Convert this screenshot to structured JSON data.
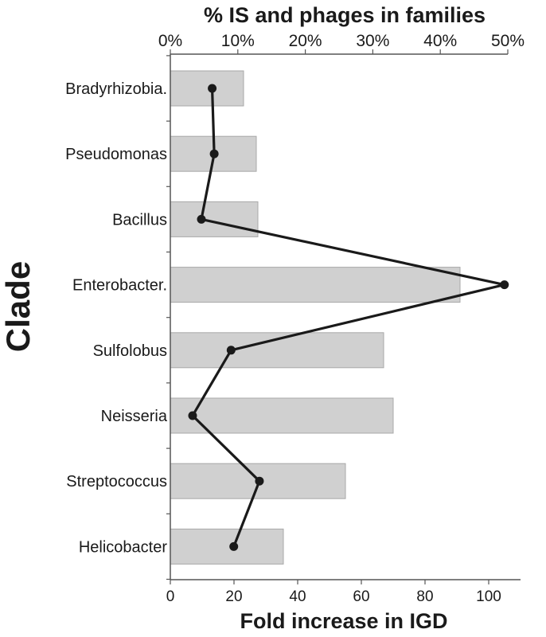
{
  "chart_data": {
    "type": "bar",
    "orientation": "horizontal",
    "ylabel": "Clade",
    "categories": [
      "Bradyrhizobia.",
      "Pseudomonas",
      "Bacillus",
      "Enterobacter.",
      "Sulfolobus",
      "Neisseria",
      "Streptococcus",
      "Helicobacter"
    ],
    "bar_axis": {
      "label": "Fold increase in IGD",
      "position": "bottom",
      "range": [
        0,
        110
      ],
      "ticks": [
        "0",
        "20",
        "40",
        "60",
        "80",
        "100"
      ],
      "tick_values": [
        0,
        20,
        40,
        60,
        80,
        100
      ]
    },
    "line_axis": {
      "label": "% IS and phages in families",
      "position": "top",
      "range": [
        0,
        50
      ],
      "ticks": [
        "0%",
        "10%",
        "20%",
        "30%",
        "40%",
        "50%"
      ],
      "tick_values": [
        0,
        10,
        20,
        30,
        40,
        50
      ]
    },
    "series": [
      {
        "type": "bar",
        "axis": "bottom",
        "values": [
          23,
          27,
          27.5,
          91,
          67,
          70,
          55,
          35.5
        ],
        "color": "#d0d0d0",
        "stroke": "#a8a8a8"
      },
      {
        "type": "line",
        "axis": "top",
        "values": [
          6.2,
          6.5,
          4.6,
          49.5,
          9.0,
          3.3,
          13.2,
          9.4
        ],
        "color": "#1a1a1a"
      }
    ],
    "grid": false,
    "legend": "none"
  }
}
